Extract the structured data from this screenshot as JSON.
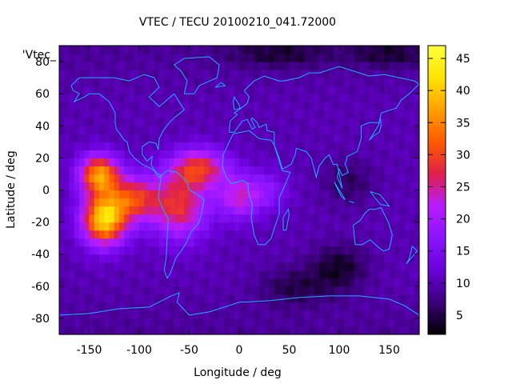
{
  "chart_data": {
    "type": "heatmap",
    "title": "VTEC / TECU 20100210_041.72000",
    "xlabel": "Longitude / deg",
    "ylabel": "Latitude / deg",
    "key_label": "'Vtec_",
    "xlim": [
      -180,
      180
    ],
    "ylim": [
      -90,
      90
    ],
    "xticks": [
      -150,
      -100,
      -50,
      0,
      50,
      100,
      150
    ],
    "yticks": [
      -80,
      -60,
      -40,
      -20,
      0,
      20,
      40,
      60,
      80
    ],
    "colorbar": {
      "min": 2,
      "max": 47,
      "ticks": [
        5,
        10,
        15,
        20,
        25,
        30,
        35,
        40,
        45
      ]
    },
    "palette": [
      "#000000",
      "#3a0078",
      "#6a00d8",
      "#8a14ff",
      "#b81cff",
      "#e0204a",
      "#ff5a00",
      "#ffa000",
      "#ffe400",
      "#ffff40"
    ],
    "coastline_color": "#1ab0ff",
    "grid_resolution_deg": 5,
    "field_components": {
      "background_vtec": 10,
      "enhancements": [
        {
          "lon": -135,
          "lat": -18,
          "peak_vtec": 31
        },
        {
          "lon": -140,
          "lat": 10,
          "peak_vtec": 26
        },
        {
          "lon": -105,
          "lat": -5,
          "peak_vtec": 18
        },
        {
          "lon": -60,
          "lat": -10,
          "peak_vtec": 18
        },
        {
          "lon": -40,
          "lat": 14,
          "peak_vtec": 18
        },
        {
          "lon": 0,
          "lat": -4,
          "peak_vtec": 13
        },
        {
          "lon": 30,
          "lat": 0,
          "peak_vtec": 6
        }
      ],
      "depletions": [
        {
          "lon": 100,
          "lat": -48,
          "min_vtec": 2
        },
        {
          "lon": 55,
          "lat": -60,
          "min_vtec": 4
        },
        {
          "lon": 110,
          "lat": 5,
          "min_vtec": 5
        },
        {
          "lon": 40,
          "lat": 85,
          "min_vtec": 4
        },
        {
          "lon": 150,
          "lat": 85,
          "min_vtec": 4
        }
      ]
    }
  }
}
